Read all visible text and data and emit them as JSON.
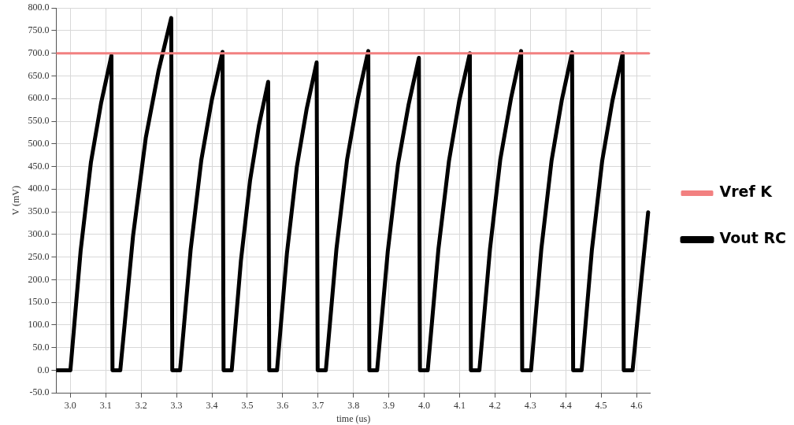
{
  "chart_data": {
    "type": "line",
    "xlabel": "time (us)",
    "ylabel": "V (mV)",
    "xlim": [
      2.96,
      4.64
    ],
    "ylim": [
      -50,
      800
    ],
    "xticks": [
      {
        "value": 3.0,
        "label": "3.0"
      },
      {
        "value": 3.1,
        "label": "3.1"
      },
      {
        "value": 3.2,
        "label": "3.2"
      },
      {
        "value": 3.3,
        "label": "3.3"
      },
      {
        "value": 3.4,
        "label": "3.4"
      },
      {
        "value": 3.5,
        "label": "3.5"
      },
      {
        "value": 3.6,
        "label": "3.6"
      },
      {
        "value": 3.7,
        "label": "3.7"
      },
      {
        "value": 3.8,
        "label": "3.8"
      },
      {
        "value": 3.9,
        "label": "3.9"
      },
      {
        "value": 4.0,
        "label": "4.0"
      },
      {
        "value": 4.1,
        "label": "4.1"
      },
      {
        "value": 4.2,
        "label": "4.2"
      },
      {
        "value": 4.3,
        "label": "4.3"
      },
      {
        "value": 4.4,
        "label": "4.4"
      },
      {
        "value": 4.5,
        "label": "4.5"
      },
      {
        "value": 4.6,
        "label": "4.6"
      }
    ],
    "yticks": [
      {
        "value": -50,
        "label": "-50.0"
      },
      {
        "value": 0,
        "label": "0.0"
      },
      {
        "value": 50,
        "label": "50.0"
      },
      {
        "value": 100,
        "label": "100.0"
      },
      {
        "value": 150,
        "label": "150.0"
      },
      {
        "value": 200,
        "label": "200.0"
      },
      {
        "value": 250,
        "label": "250.0"
      },
      {
        "value": 300,
        "label": "300.0"
      },
      {
        "value": 350,
        "label": "350.0"
      },
      {
        "value": 400,
        "label": "400.0"
      },
      {
        "value": 450,
        "label": "450.0"
      },
      {
        "value": 500,
        "label": "500.0"
      },
      {
        "value": 550,
        "label": "550.0"
      },
      {
        "value": 600,
        "label": "600.0"
      },
      {
        "value": 650,
        "label": "650.0"
      },
      {
        "value": 700,
        "label": "700.0"
      },
      {
        "value": 750,
        "label": "750.0"
      },
      {
        "value": 800,
        "label": "800.0"
      }
    ],
    "grid": true,
    "legend": "right",
    "marker": "none",
    "line_style": "solid",
    "series": [
      {
        "name": "Vref K",
        "color": "#f28080",
        "x": [
          2.962,
          4.635
        ],
        "values": [
          700,
          700
        ]
      },
      {
        "name": "Vout RC",
        "color": "#000000",
        "x": [
          2.962,
          3.0,
          3.029,
          3.058,
          3.087,
          3.116,
          3.119,
          3.141,
          3.177,
          3.213,
          3.249,
          3.285,
          3.288,
          3.31,
          3.34,
          3.37,
          3.4,
          3.43,
          3.433,
          3.456,
          3.482,
          3.508,
          3.533,
          3.559,
          3.562,
          3.584,
          3.612,
          3.64,
          3.668,
          3.696,
          3.699,
          3.722,
          3.752,
          3.782,
          3.812,
          3.842,
          3.845,
          3.867,
          3.897,
          3.926,
          3.956,
          3.985,
          3.988,
          4.01,
          4.04,
          4.07,
          4.099,
          4.129,
          4.132,
          4.156,
          4.186,
          4.215,
          4.245,
          4.274,
          4.277,
          4.302,
          4.331,
          4.36,
          4.389,
          4.418,
          4.421,
          4.445,
          4.474,
          4.503,
          4.532,
          4.561,
          4.564,
          4.589,
          4.611,
          4.633
        ],
        "values": [
          0,
          0,
          264,
          459,
          591,
          695,
          0,
          0,
          296,
          513,
          661,
          778,
          0,
          0,
          267,
          464,
          598,
          703,
          0,
          0,
          242,
          420,
          541,
          637,
          0,
          0,
          258,
          449,
          578,
          680,
          0,
          0,
          268,
          465,
          599,
          705,
          0,
          0,
          262,
          455,
          587,
          690,
          0,
          0,
          266,
          462,
          595,
          700,
          0,
          0,
          268,
          465,
          599,
          705,
          0,
          0,
          267,
          463,
          597,
          702,
          0,
          0,
          266,
          462,
          595,
          700,
          0,
          0,
          178,
          349
        ]
      }
    ]
  }
}
